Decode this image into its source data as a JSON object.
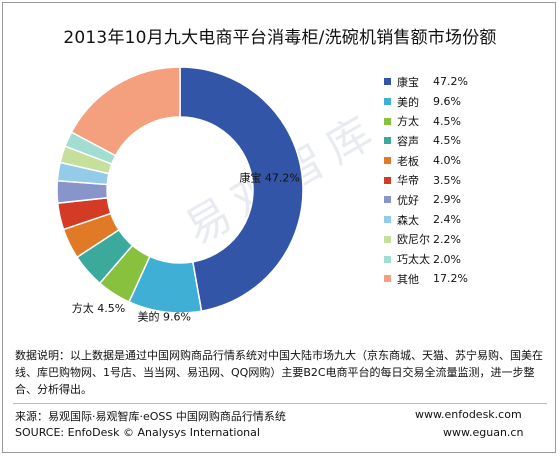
{
  "title": "2013年10月九大电商平台消毒柜/洗碗机销售额市场份额",
  "watermark": "易观智库",
  "chart_data": {
    "type": "pie",
    "donut": true,
    "categories": [
      "康宝",
      "美的",
      "方太",
      "容声",
      "老板",
      "华帝",
      "优好",
      "森太",
      "欧尼尔",
      "巧太太",
      "其他"
    ],
    "values": [
      47.2,
      9.6,
      4.5,
      4.5,
      4.0,
      3.5,
      2.9,
      2.4,
      2.2,
      2.0,
      17.2
    ],
    "value_labels": [
      "47.2%",
      "9.6%",
      "4.5%",
      "4.5%",
      "4.0%",
      "3.5%",
      "2.9%",
      "2.4%",
      "2.2%",
      "2.0%",
      "17.2%"
    ],
    "colors": [
      "#3355a8",
      "#3fafd6",
      "#88c13d",
      "#3ba99b",
      "#e07a27",
      "#d33b26",
      "#8895cb",
      "#94cbe8",
      "#c4e09a",
      "#a1ddd0",
      "#f4a07e"
    ],
    "slice_labels": [
      {
        "index": 0,
        "text": "康宝  47.2%"
      },
      {
        "index": 1,
        "text": "美的  9.6%"
      },
      {
        "index": 2,
        "text": "方太  4.5%"
      }
    ],
    "legend_position": "right"
  },
  "note": "数据说明：以上数据是通过中国网购商品行情系统对中国大陆市场九大（京东商城、天猫、苏宁易购、国美在线、库巴购物网、1号店、当当网、易迅网、QQ网购）主要B2C电商平台的每日交易全流量监测，进一步整合、分析得出。",
  "source_cn": "来源：易观国际·易观智库·eOSS 中国网购商品行情系统",
  "source_en": "SOURCE: EnfoDesk © Analysys International",
  "url1": "www.enfodesk.com",
  "url2": "www.eguan.cn"
}
